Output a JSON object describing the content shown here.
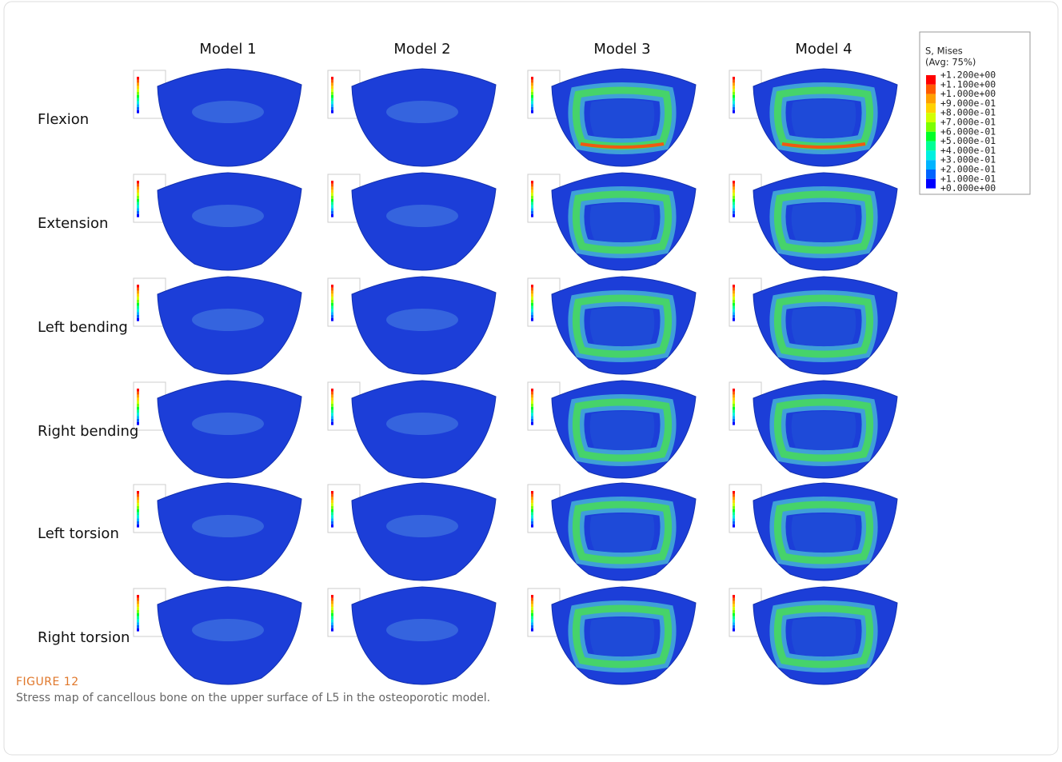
{
  "figure": {
    "columns": [
      "Model 1",
      "Model 2",
      "Model 3",
      "Model 4"
    ],
    "rows": [
      "Flexion",
      "Extension",
      "Left bending",
      "Right bending",
      "Left torsion",
      "Right torsion"
    ],
    "legend": {
      "title": "S, Mises",
      "subtitle": "(Avg: 75%)",
      "labels": [
        "+1.200e+00",
        "+1.100e+00",
        "+1.000e+00",
        "+9.000e-01",
        "+8.000e-01",
        "+7.000e-01",
        "+6.000e-01",
        "+5.000e-01",
        "+4.000e-01",
        "+3.000e-01",
        "+2.000e-01",
        "+1.000e-01",
        "+0.000e+00"
      ]
    },
    "caption": {
      "label": "FIGURE 12",
      "text": "Stress map of cancellous bone on the upper surface of L5 in the osteoporotic model."
    }
  }
}
